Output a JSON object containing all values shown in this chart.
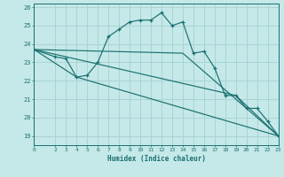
{
  "xlabel": "Humidex (Indice chaleur)",
  "background_color": "#c5e8e8",
  "grid_color": "#aad4d4",
  "line_color": "#1a7070",
  "xlim": [
    0,
    23
  ],
  "ylim": [
    18.5,
    26.2
  ],
  "yticks": [
    19,
    20,
    21,
    22,
    23,
    24,
    25,
    26
  ],
  "xticks": [
    0,
    2,
    3,
    4,
    5,
    6,
    7,
    8,
    9,
    10,
    11,
    12,
    13,
    14,
    15,
    16,
    17,
    18,
    19,
    20,
    21,
    22,
    23
  ],
  "series1_x": [
    0,
    2,
    3,
    4,
    5,
    6,
    7,
    8,
    9,
    10,
    11,
    12,
    13,
    14,
    15,
    16,
    17,
    18,
    19,
    20,
    21,
    22,
    23
  ],
  "series1_y": [
    23.7,
    23.3,
    23.2,
    22.2,
    22.3,
    23.0,
    24.4,
    24.8,
    25.2,
    25.3,
    25.3,
    25.7,
    25.0,
    25.2,
    23.5,
    23.6,
    22.7,
    21.2,
    21.2,
    20.5,
    20.5,
    19.8,
    19.0
  ],
  "series2_x": [
    0,
    4,
    23
  ],
  "series2_y": [
    23.7,
    22.2,
    19.0
  ],
  "series3_x": [
    0,
    14,
    23
  ],
  "series3_y": [
    23.7,
    23.5,
    19.0
  ],
  "series4_x": [
    0,
    19,
    23
  ],
  "series4_y": [
    23.7,
    21.2,
    19.0
  ]
}
